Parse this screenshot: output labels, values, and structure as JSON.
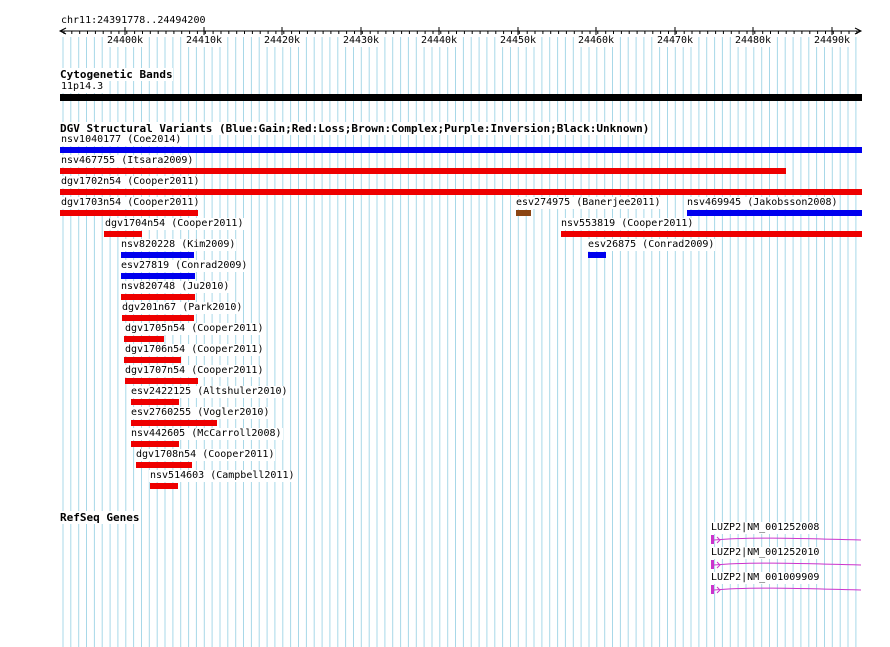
{
  "ruler": {
    "region": "chr11:24391778..24494200",
    "ticks": [
      "24400k",
      "24410k",
      "24420k",
      "24430k",
      "24440k",
      "24450k",
      "24460k",
      "24470k",
      "24480k",
      "24490k"
    ]
  },
  "cytoband": {
    "title": "Cytogenetic Bands",
    "band": "11p14.3"
  },
  "dgv": {
    "title": "DGV Structural Variants (Blue:Gain;Red:Loss;Brown:Complex;Purple:Inversion;Black:Unknown)",
    "colors": {
      "gain": "#0000ee",
      "loss": "#ee0000",
      "complex": "#8b4513"
    },
    "variants": [
      {
        "label": "nsv1040177 (Coe2014)",
        "type": "gain"
      },
      {
        "label": "nsv467755 (Itsara2009)",
        "type": "loss"
      },
      {
        "label": "dgv1702n54 (Cooper2011)",
        "type": "loss"
      },
      {
        "label": "dgv1703n54 (Cooper2011)",
        "type": "loss"
      },
      {
        "label": "esv274975 (Banerjee2011)",
        "type": "complex"
      },
      {
        "label": "nsv469945 (Jakobsson2008)",
        "type": "gain"
      },
      {
        "label": "dgv1704n54 (Cooper2011)",
        "type": "loss"
      },
      {
        "label": "nsv553819 (Cooper2011)",
        "type": "loss"
      },
      {
        "label": "nsv820228 (Kim2009)",
        "type": "gain"
      },
      {
        "label": "esv26875 (Conrad2009)",
        "type": "gain"
      },
      {
        "label": "esv27819 (Conrad2009)",
        "type": "gain"
      },
      {
        "label": "nsv820748 (Ju2010)",
        "type": "loss"
      },
      {
        "label": "dgv201n67 (Park2010)",
        "type": "loss"
      },
      {
        "label": "dgv1705n54 (Cooper2011)",
        "type": "loss"
      },
      {
        "label": "dgv1706n54 (Cooper2011)",
        "type": "loss"
      },
      {
        "label": "dgv1707n54 (Cooper2011)",
        "type": "loss"
      },
      {
        "label": "esv2422125 (Altshuler2010)",
        "type": "loss"
      },
      {
        "label": "esv2760255 (Vogler2010)",
        "type": "loss"
      },
      {
        "label": "nsv442605 (McCarroll2008)",
        "type": "loss"
      },
      {
        "label": "dgv1708n54 (Cooper2011)",
        "type": "loss"
      },
      {
        "label": "nsv514603 (Campbell2011)",
        "type": "loss"
      }
    ]
  },
  "refseq": {
    "title": "RefSeq Genes",
    "color": "#cc33cc",
    "genes": [
      {
        "label": "LUZP2|NM_001252008"
      },
      {
        "label": "LUZP2|NM_001252010"
      },
      {
        "label": "LUZP2|NM_001009909"
      }
    ]
  }
}
